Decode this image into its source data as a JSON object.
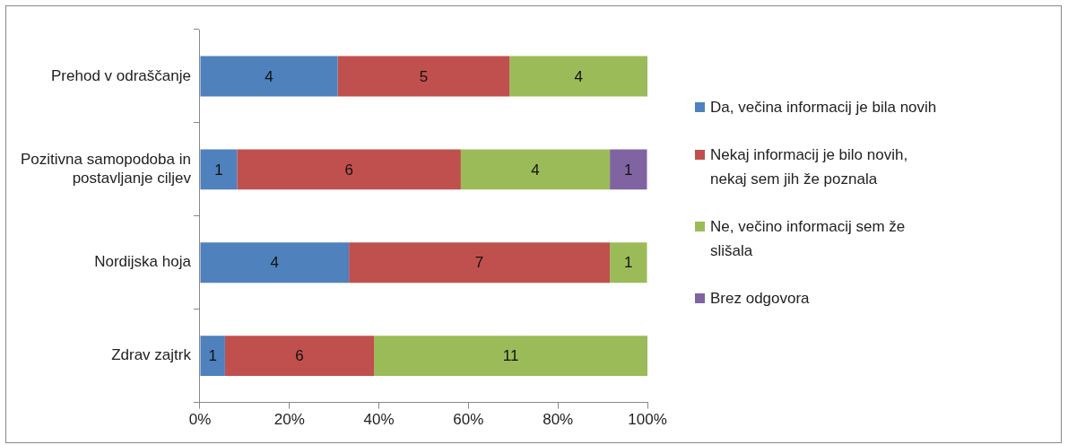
{
  "chart_data": {
    "type": "bar",
    "orientation": "horizontal",
    "stacked": true,
    "categories": [
      "Prehod v odraščanje",
      "Pozitivna samopodoba in postavljanje ciljev",
      "Nordijska hoja",
      "Zdrav zajtrk"
    ],
    "series": [
      {
        "name": "Da, večina informacij je bila novih",
        "color": "#4f81bd",
        "values": [
          30.8,
          8.3,
          33.3,
          5.6
        ]
      },
      {
        "name": "Nekaj informacij je bilo novih, nekaj sem jih že poznala",
        "color": "#c0504d",
        "values": [
          38.4,
          50,
          58.3,
          33.3
        ]
      },
      {
        "name": "Ne, večino informacij sem že slišala",
        "color": "#9bbb59",
        "values": [
          30.8,
          33.3,
          8.3,
          61.1
        ]
      },
      {
        "name": "Brez odgovora",
        "color": "#8064a2",
        "values": [
          null,
          8.3,
          null,
          null
        ]
      }
    ],
    "annotations": [
      "4",
      "5",
      "4",
      "1",
      "6",
      "4",
      "1",
      "4",
      "7",
      "1",
      "1",
      "6",
      "11"
    ],
    "xlim": [
      0,
      100
    ],
    "xticks": [
      {
        "value": 0,
        "label": "0%"
      },
      {
        "value": 20,
        "label": "20%"
      },
      {
        "value": 40,
        "label": "40%"
      },
      {
        "value": 60,
        "label": "60%"
      },
      {
        "value": 80,
        "label": "80%"
      },
      {
        "value": 100,
        "label": "100%"
      }
    ],
    "grid": false,
    "legend": "right"
  }
}
